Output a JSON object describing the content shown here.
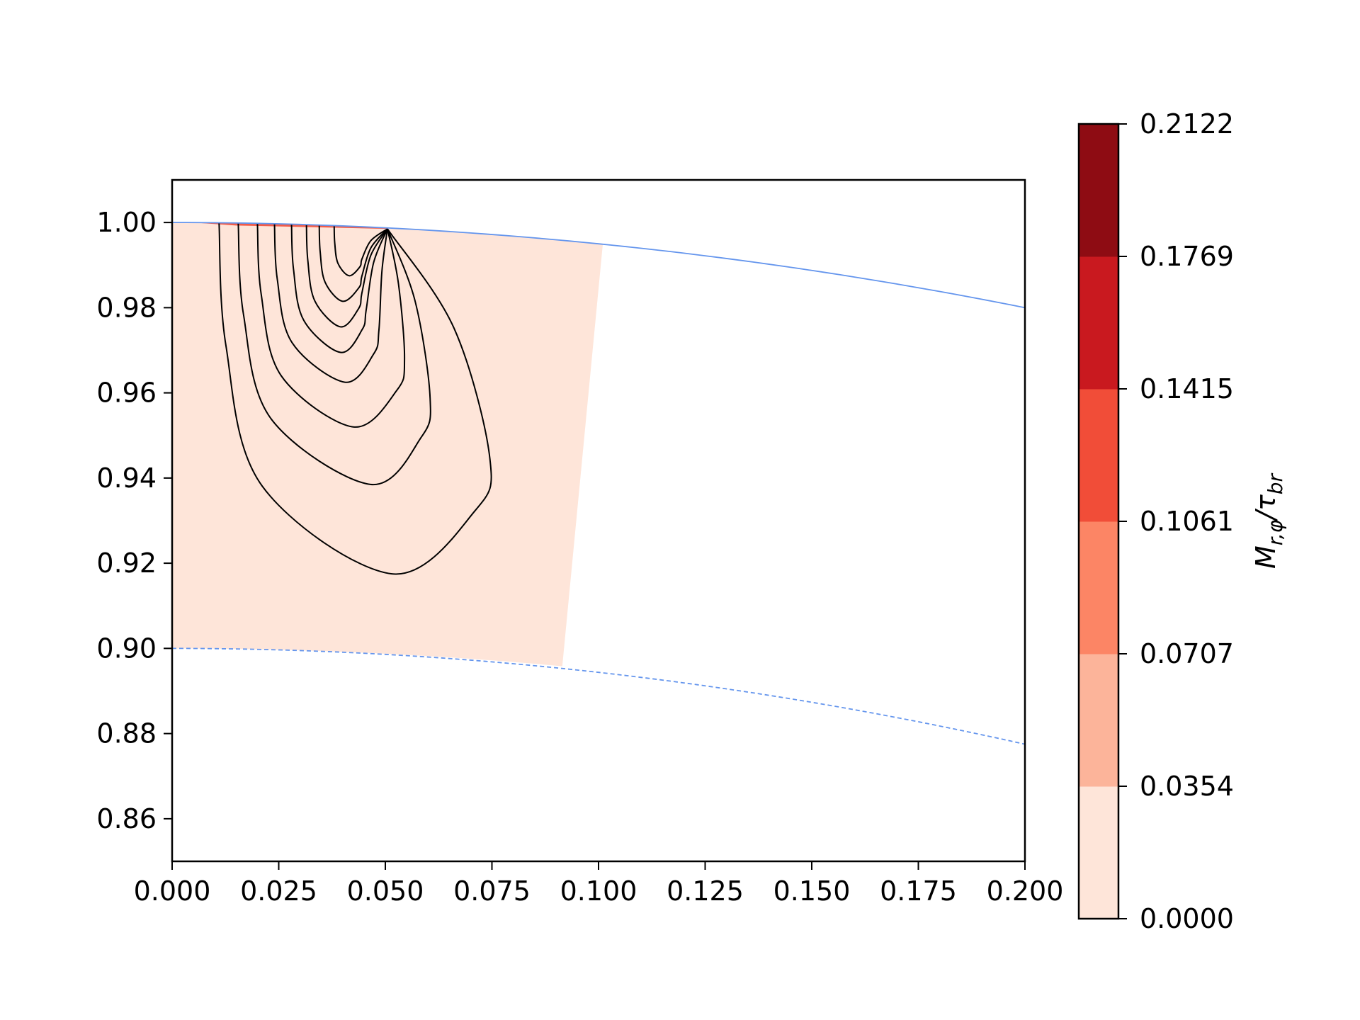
{
  "chart_data": {
    "type": "contour",
    "xlim": [
      0.0,
      0.2
    ],
    "ylim": [
      0.85,
      1.01
    ],
    "x_ticks": [
      "0.000",
      "0.025",
      "0.050",
      "0.075",
      "0.100",
      "0.125",
      "0.150",
      "0.175",
      "0.200"
    ],
    "y_ticks": [
      "0.86",
      "0.88",
      "0.90",
      "0.92",
      "0.94",
      "0.96",
      "0.98",
      "1.00"
    ],
    "colorbar": {
      "label": "Mr,φ/τbr",
      "levels": [
        "0.0000",
        "0.0354",
        "0.0707",
        "0.1061",
        "0.1415",
        "0.1769",
        "0.2122"
      ],
      "level_values": [
        0.0,
        0.0354,
        0.0707,
        0.1061,
        0.1415,
        0.1769,
        0.2122
      ],
      "colors": [
        "#fee5d9",
        "#fcb49a",
        "#fc8565",
        "#f14d38",
        "#c9191f",
        "#8e0c13"
      ]
    },
    "outer_boundary": {
      "style": "solid",
      "color": "#6495ed",
      "points": [
        [
          0.0,
          1.0
        ],
        [
          0.05,
          0.99875
        ],
        [
          0.1,
          0.995
        ],
        [
          0.15,
          0.98875
        ],
        [
          0.2,
          0.98
        ]
      ]
    },
    "inner_boundary": {
      "style": "dashed",
      "color": "#6495ed",
      "points": [
        [
          0.0,
          0.9
        ],
        [
          0.05,
          0.89875
        ],
        [
          0.1,
          0.895
        ],
        [
          0.15,
          0.88875
        ],
        [
          0.2,
          0.8775
        ]
      ]
    },
    "filled_region": {
      "color": "#fee5d9",
      "value_range": [
        0.0,
        0.0354
      ],
      "corners": [
        [
          0.0,
          1.0
        ],
        [
          0.101,
          0.9945
        ],
        [
          0.0915,
          0.8955
        ],
        [
          0.0,
          0.9
        ]
      ]
    },
    "high_value_strip": {
      "color": "#f14d38",
      "x_range": [
        0.005,
        0.0505
      ],
      "y_top": 1.0,
      "y_bottom": 0.9985
    },
    "contour_lines": {
      "color": "#000000",
      "source_point": [
        0.0505,
        0.9985
      ],
      "loops": [
        {
          "x_start": 0.011,
          "x_bottom": 0.0515,
          "y_bottom": 0.9175,
          "x_right": 0.0745
        },
        {
          "x_start": 0.0155,
          "x_bottom": 0.0465,
          "y_bottom": 0.9385,
          "x_right": 0.0605
        },
        {
          "x_start": 0.02,
          "x_bottom": 0.0425,
          "y_bottom": 0.952,
          "x_right": 0.0545
        },
        {
          "x_start": 0.024,
          "x_bottom": 0.0405,
          "y_bottom": 0.9625,
          "x_right": 0.0485
        },
        {
          "x_start": 0.028,
          "x_bottom": 0.0395,
          "y_bottom": 0.9695,
          "x_right": 0.0455
        },
        {
          "x_start": 0.0315,
          "x_bottom": 0.0395,
          "y_bottom": 0.9755,
          "x_right": 0.0445
        },
        {
          "x_start": 0.0345,
          "x_bottom": 0.04,
          "y_bottom": 0.9815,
          "x_right": 0.0445
        },
        {
          "x_start": 0.038,
          "x_bottom": 0.0415,
          "y_bottom": 0.9875,
          "x_right": 0.0445
        }
      ]
    }
  }
}
